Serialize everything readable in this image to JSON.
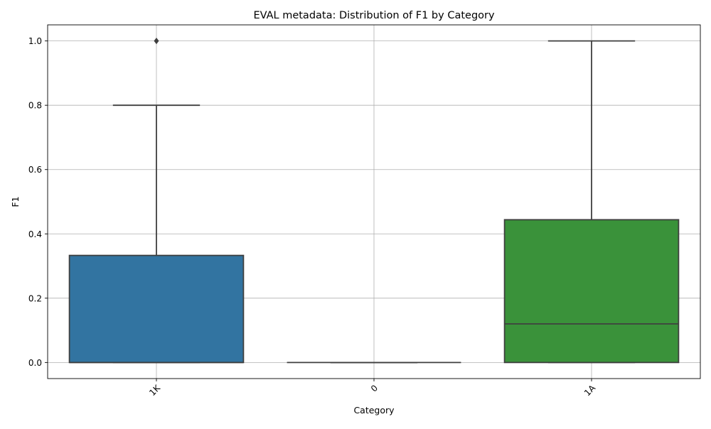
{
  "chart_data": {
    "type": "box",
    "title": "EVAL metadata: Distribution of F1 by Category",
    "xlabel": "Category",
    "ylabel": "F1",
    "ylim": [
      -0.05,
      1.05
    ],
    "yticks": [
      0.0,
      0.2,
      0.4,
      0.6,
      0.8,
      1.0
    ],
    "ytick_labels": [
      "0.0",
      "0.2",
      "0.4",
      "0.6",
      "0.8",
      "1.0"
    ],
    "grid": true,
    "categories": [
      "1K",
      "0",
      "1A"
    ],
    "boxes": [
      {
        "category": "1K",
        "whisker_low": 0.0,
        "q1": 0.0,
        "median": 0.0,
        "q3": 0.333,
        "whisker_high": 0.8,
        "outliers": [
          1.0
        ],
        "color": "#3274a1"
      },
      {
        "category": "0",
        "whisker_low": 0.0,
        "q1": 0.0,
        "median": 0.0,
        "q3": 0.0,
        "whisker_high": 0.0,
        "outliers": [],
        "color": "#e1812c"
      },
      {
        "category": "1A",
        "whisker_low": 0.0,
        "q1": 0.0,
        "median": 0.12,
        "q3": 0.444,
        "whisker_high": 1.0,
        "outliers": [],
        "color": "#3a923a"
      }
    ]
  }
}
